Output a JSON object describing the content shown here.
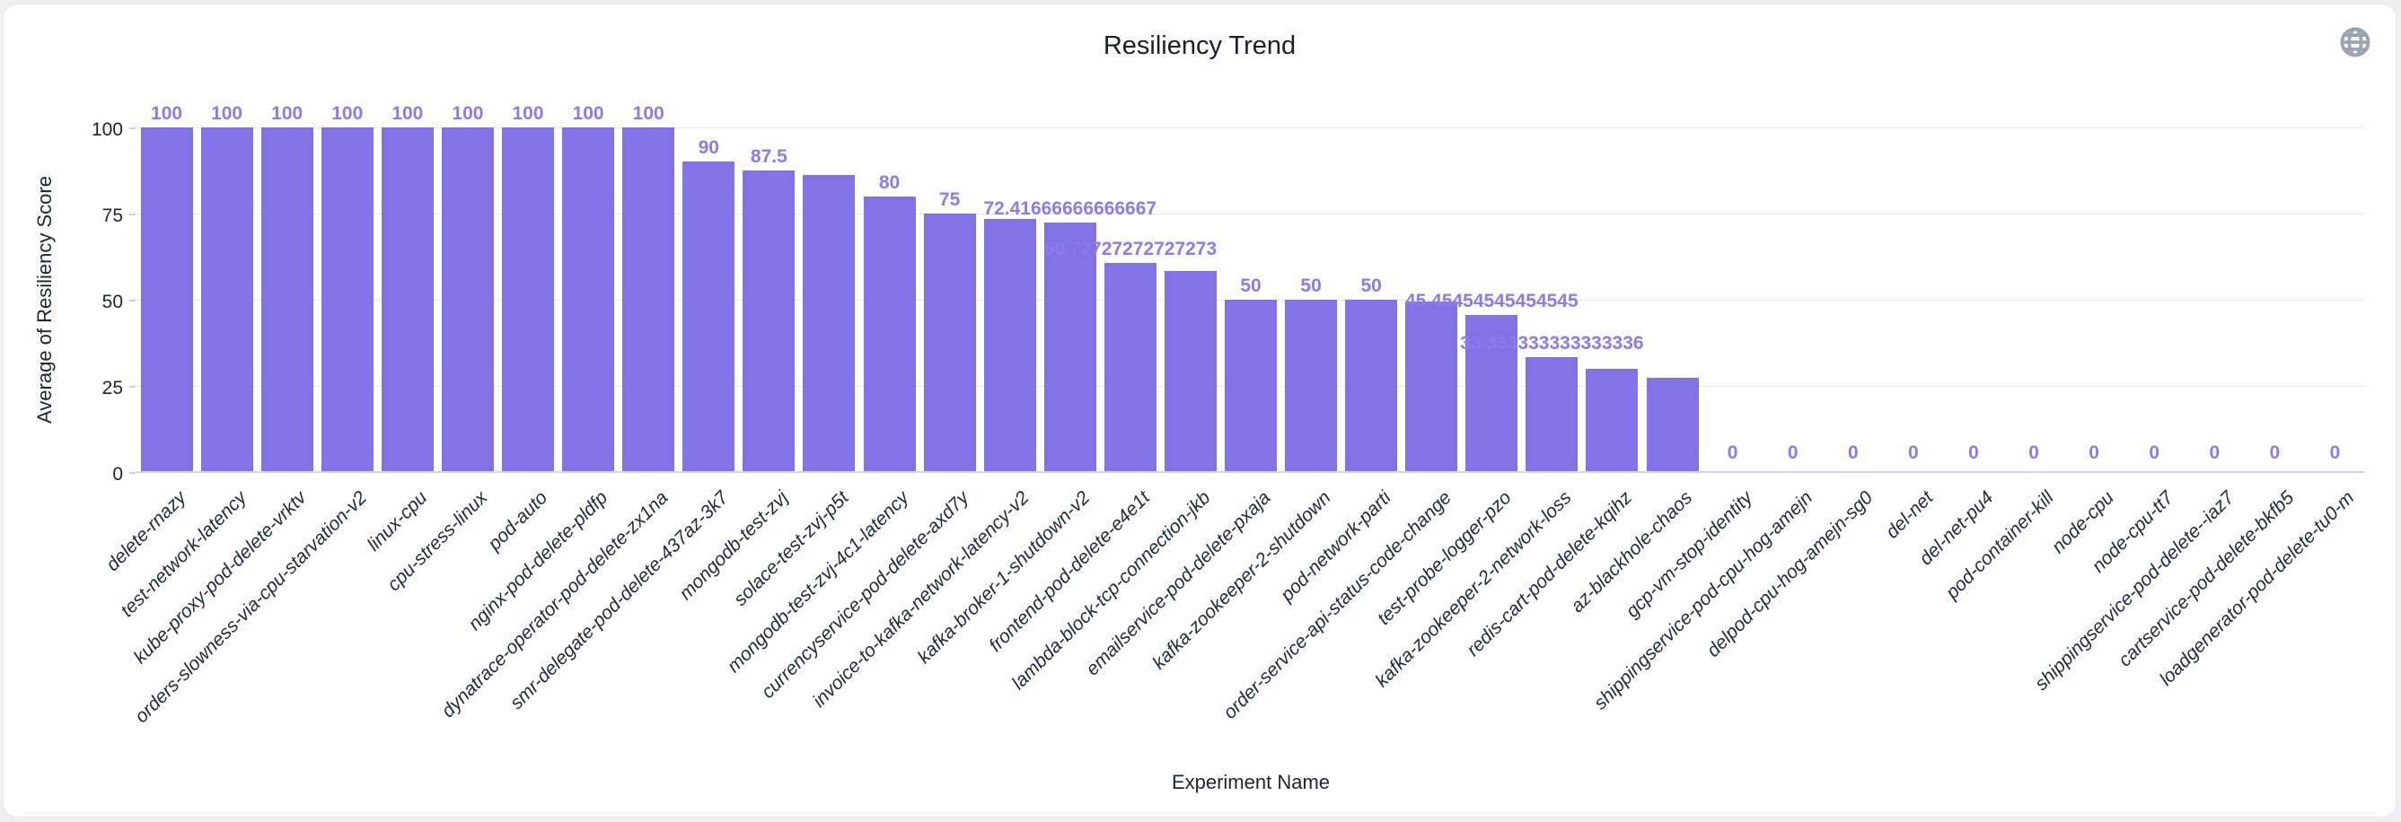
{
  "card": {
    "globe_icon": "globe-icon",
    "globe_color": "#9aa4b4"
  },
  "chart_data": {
    "type": "bar",
    "title": "Resiliency Trend",
    "xlabel": "Experiment Name",
    "ylabel": "Average of Resiliency Score",
    "ylim": [
      0,
      100
    ],
    "yticks": [
      0,
      25,
      50,
      75,
      100
    ],
    "grid": true,
    "legend": "none",
    "bar_color": "#8173e5",
    "value_label_color": "#8a7cef",
    "categories": [
      "delete-rnazy",
      "test-network-latency",
      "kube-proxy-pod-delete-vrktv",
      "orders-slowness-via-cpu-starvation-v2",
      "linux-cpu",
      "cpu-stress-linux",
      "pod-auto",
      "nginx-pod-delete-pldfp",
      "dynatrace-operator-pod-delete-zx1na",
      "smr-delegate-pod-delete-437az-3k7",
      "mongodb-test-zvj",
      "solace-test-zvj-p5t",
      "mongodb-test-zvj-4c1-latency",
      "currencyservice-pod-delete-axd7y",
      "invoice-to-kafka-network-latency-v2",
      "kafka-broker-1-shutdown-v2",
      "frontend-pod-delete-e4e1t",
      "lambda-block-tcp-connection-jkb",
      "emailservice-pod-delete-pxaja",
      "kafka-zookeeper-2-shutdown",
      "pod-network-parti",
      "order-service-api-status-code-change",
      "test-probe-logger-pzo",
      "kafka-zookeeper-2-network-loss",
      "redis-cart-pod-delete-kqihz",
      "az-blackhole-chaos",
      "gcp-vm-stop-identity",
      "shippingservice-pod-cpu-hog-amejn",
      "delpod-cpu-hog-amejn-sg0",
      "del-net",
      "del-net-pu4",
      "pod-container-kill",
      "node-cpu",
      "node-cpu-tt7",
      "shippingservice-pod-delete--iaz7",
      "cartservice-pod-delete-bkfb5",
      "loadgenerator-pod-delete-tu0-m"
    ],
    "values": [
      100,
      100,
      100,
      100,
      100,
      100,
      100,
      100,
      100,
      90,
      87.5,
      86.2,
      80,
      75,
      73.5,
      72.41666666666667,
      60.72727272727273,
      58.3,
      50,
      50,
      50,
      49.4,
      45.45454545454545,
      33.333333333333336,
      30,
      27.3,
      0,
      0,
      0,
      0,
      0,
      0,
      0,
      0,
      0,
      0,
      0
    ],
    "bar_labels": [
      "100",
      "100",
      "100",
      "100",
      "100",
      "100",
      "100",
      "100",
      "100",
      "90",
      "87.5",
      "",
      "80",
      "75",
      "",
      "72.41666666666667",
      "60.72727272727273",
      "",
      "50",
      "50",
      "50",
      "",
      "45.45454545454545",
      "33.333333333333336",
      "",
      "",
      "0",
      "0",
      "0",
      "0",
      "0",
      "0",
      "0",
      "0",
      "0",
      "0",
      "0"
    ]
  }
}
